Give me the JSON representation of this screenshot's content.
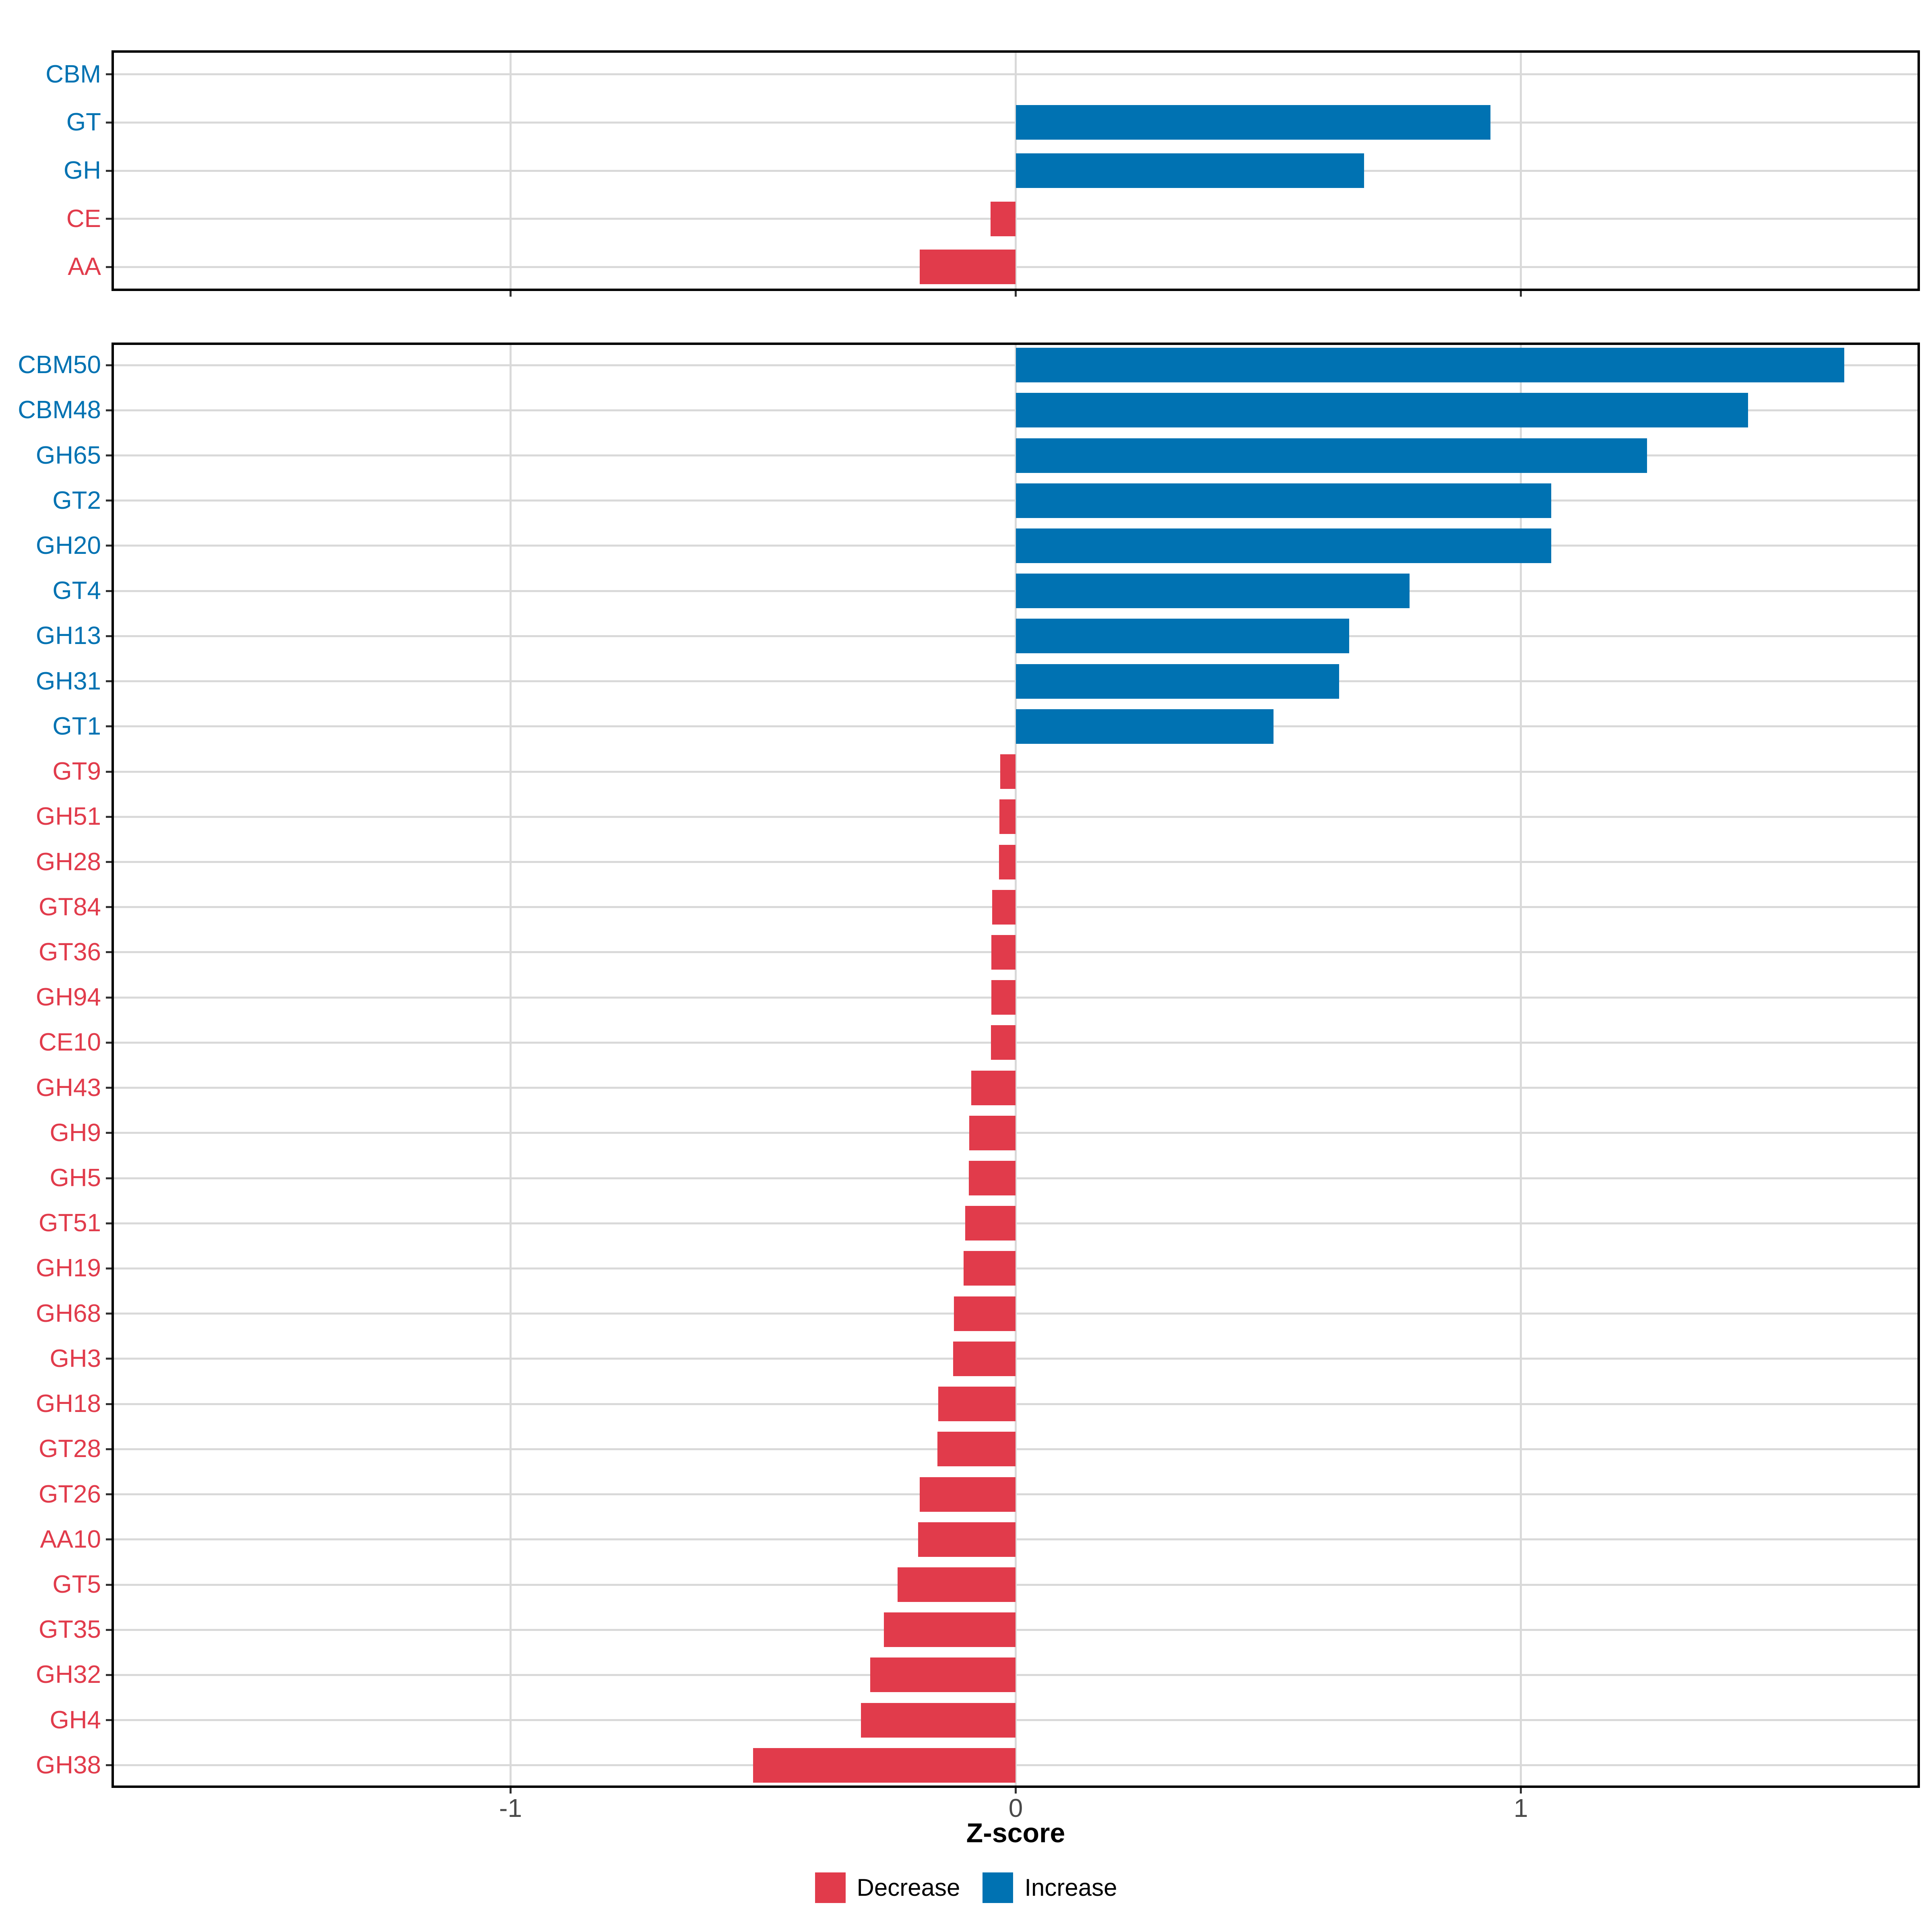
{
  "chart_data": [
    {
      "type": "bar",
      "orientation": "horizontal",
      "panel": "cazyme-class",
      "categories": [
        "CBM",
        "GT",
        "GH",
        "CE",
        "AA"
      ],
      "values": [
        0,
        0.94,
        0.69,
        -0.05,
        -0.19
      ],
      "directions": [
        "increase",
        "increase",
        "increase",
        "decrease",
        "decrease"
      ],
      "xlim": [
        -1.79,
        1.79
      ],
      "xticks": [
        -1,
        0,
        1
      ],
      "grid": true
    },
    {
      "type": "bar",
      "orientation": "horizontal",
      "panel": "cazyme-family",
      "categories": [
        "CBM50",
        "CBM48",
        "GH65",
        "GT2",
        "GH20",
        "GT4",
        "GH13",
        "GH31",
        "GT1",
        "GT9",
        "GH51",
        "GH28",
        "GT84",
        "GT36",
        "GH94",
        "CE10",
        "GH43",
        "GH9",
        "GH5",
        "GT51",
        "GH19",
        "GH68",
        "GH3",
        "GH18",
        "GT28",
        "GT26",
        "AA10",
        "GT5",
        "GT35",
        "GH32",
        "GH4",
        "GH38"
      ],
      "values": [
        1.64,
        1.45,
        1.25,
        1.06,
        1.06,
        0.78,
        0.66,
        0.64,
        0.51,
        -0.031,
        -0.032,
        -0.033,
        -0.047,
        -0.048,
        -0.048,
        -0.049,
        -0.088,
        -0.092,
        -0.093,
        -0.1,
        -0.103,
        -0.122,
        -0.124,
        -0.153,
        -0.155,
        -0.19,
        -0.193,
        -0.234,
        -0.261,
        -0.288,
        -0.306,
        -0.52
      ],
      "directions": [
        "increase",
        "increase",
        "increase",
        "increase",
        "increase",
        "increase",
        "increase",
        "increase",
        "increase",
        "decrease",
        "decrease",
        "decrease",
        "decrease",
        "decrease",
        "decrease",
        "decrease",
        "decrease",
        "decrease",
        "decrease",
        "decrease",
        "decrease",
        "decrease",
        "decrease",
        "decrease",
        "decrease",
        "decrease",
        "decrease",
        "decrease",
        "decrease",
        "decrease",
        "decrease",
        "decrease"
      ],
      "xlim": [
        -1.79,
        1.79
      ],
      "xticks": [
        -1,
        0,
        1
      ],
      "grid": true
    }
  ],
  "axis": {
    "xlabel": "Z-score",
    "tick_labels": [
      "-1",
      "0",
      "1"
    ]
  },
  "legend": {
    "position": "bottom",
    "items": [
      {
        "label": "Decrease",
        "color": "#e13b4b"
      },
      {
        "label": "Increase",
        "color": "#0072b2"
      }
    ]
  },
  "colors": {
    "increase": "#0072b2",
    "decrease": "#e13b4b",
    "gridline": "#d9d9d9",
    "panel_border": "#000000",
    "tick": "#333333",
    "axis_text": "#4a4a4a",
    "background": "#ffffff"
  }
}
